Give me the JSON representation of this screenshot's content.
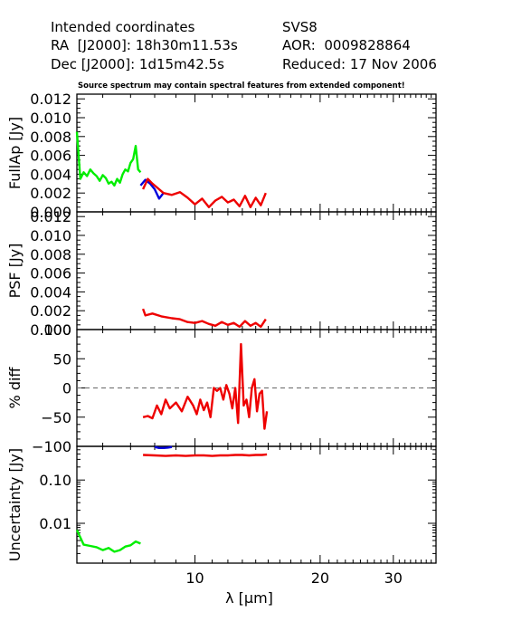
{
  "header": {
    "left_title": "Intended coordinates",
    "ra": "RA  [J2000]: 18h30m11.53s",
    "dec": "Dec [J2000]: 1d15m42.5s",
    "target": "SVS8",
    "aor": "AOR:  0009828864",
    "reduced": "Reduced: 17 Nov 2006",
    "warning": "Source spectrum may contain spectral features from extended component!"
  },
  "colors": {
    "sl_green": "#00ee00",
    "ll_blue": "#0000dd",
    "ll_red": "#ee0000",
    "axis": "#000000"
  },
  "chart_data": [
    {
      "type": "line",
      "ylabel": "FullAp [Jy]",
      "ylim": [
        0,
        0.0125
      ],
      "yticks": [
        "0.000",
        "0.002",
        "0.004",
        "0.006",
        "0.008",
        "0.010",
        "0.012"
      ],
      "series": [
        {
          "color": "green",
          "x": [
            5.2,
            5.3,
            5.4,
            5.5,
            5.6,
            5.7,
            5.8,
            5.9,
            6.0,
            6.1,
            6.2,
            6.3,
            6.4,
            6.5,
            6.6,
            6.7,
            6.8,
            6.9,
            7.0,
            7.1,
            7.2,
            7.3,
            7.4
          ],
          "y": [
            0.0085,
            0.0035,
            0.0042,
            0.0038,
            0.0045,
            0.0041,
            0.0038,
            0.0033,
            0.0039,
            0.0036,
            0.003,
            0.0032,
            0.0028,
            0.0035,
            0.0031,
            0.004,
            0.0045,
            0.0043,
            0.0052,
            0.0056,
            0.007,
            0.0045,
            0.0042
          ]
        },
        {
          "color": "blue",
          "x": [
            7.4,
            7.6,
            7.8,
            8.0,
            8.2,
            8.4
          ],
          "y": [
            0.0028,
            0.0034,
            0.003,
            0.0024,
            0.0014,
            0.002
          ]
        },
        {
          "color": "red",
          "x": [
            7.5,
            7.7,
            7.9,
            8.1,
            8.4,
            8.8,
            9.2,
            9.6,
            10.0,
            10.4,
            10.8,
            11.2,
            11.6,
            12.0,
            12.4,
            12.8,
            13.2,
            13.6,
            14.0,
            14.4,
            14.8
          ],
          "y": [
            0.0024,
            0.0035,
            0.003,
            0.0026,
            0.002,
            0.0018,
            0.0021,
            0.0015,
            0.0008,
            0.0014,
            0.0005,
            0.0012,
            0.0016,
            0.001,
            0.0013,
            0.0006,
            0.0017,
            0.0005,
            0.0015,
            0.0007,
            0.002
          ]
        }
      ]
    },
    {
      "type": "line",
      "ylabel": "PSF [Jy]",
      "ylim": [
        0,
        0.0125
      ],
      "yticks": [
        "0.000",
        "0.002",
        "0.004",
        "0.006",
        "0.008",
        "0.010",
        "0.012"
      ],
      "series": [
        {
          "color": "red",
          "x": [
            7.5,
            7.6,
            7.9,
            8.3,
            8.8,
            9.2,
            9.6,
            10.0,
            10.4,
            10.8,
            11.2,
            11.6,
            12.0,
            12.4,
            12.8,
            13.2,
            13.6,
            14.0,
            14.4,
            14.8
          ],
          "y": [
            0.0022,
            0.0015,
            0.0017,
            0.0014,
            0.0012,
            0.0011,
            0.0008,
            0.0007,
            0.0009,
            0.0006,
            0.0004,
            0.0008,
            0.0005,
            0.0007,
            0.0003,
            0.0009,
            0.0004,
            0.0007,
            0.0003,
            0.0011
          ]
        }
      ]
    },
    {
      "type": "line",
      "ylabel": "% diff",
      "ylim": [
        -100,
        100
      ],
      "yticks": [
        "−100",
        "−50",
        "0",
        "50",
        "100"
      ],
      "zero_line": true,
      "series": [
        {
          "color": "red",
          "x": [
            7.5,
            7.7,
            7.9,
            8.1,
            8.3,
            8.5,
            8.7,
            9.0,
            9.3,
            9.6,
            9.9,
            10.1,
            10.3,
            10.5,
            10.7,
            10.9,
            11.1,
            11.3,
            11.5,
            11.7,
            11.9,
            12.1,
            12.3,
            12.5,
            12.7,
            12.9,
            13.1,
            13.3,
            13.5,
            13.7,
            13.9,
            14.1,
            14.3,
            14.5,
            14.7,
            14.9
          ],
          "y": [
            -50,
            -48,
            -52,
            -30,
            -45,
            -20,
            -35,
            -25,
            -40,
            -15,
            -30,
            -45,
            -20,
            -38,
            -25,
            -50,
            0,
            -5,
            0,
            -20,
            5,
            -10,
            -35,
            0,
            -60,
            75,
            -30,
            -20,
            -50,
            0,
            15,
            -40,
            -10,
            -5,
            -70,
            -40
          ]
        }
      ]
    },
    {
      "type": "line",
      "ylabel": "Uncertainty [Jy]",
      "yscale": "log",
      "ylim": [
        0.0012,
        0.6
      ],
      "yticks": [
        "0.01",
        "0.10"
      ],
      "series": [
        {
          "color": "green",
          "x": [
            5.2,
            5.4,
            5.6,
            5.8,
            6.0,
            6.2,
            6.4,
            6.6,
            6.8,
            7.0,
            7.2,
            7.4
          ],
          "y": [
            0.007,
            0.0032,
            0.003,
            0.0028,
            0.0024,
            0.0027,
            0.0022,
            0.0024,
            0.0029,
            0.0031,
            0.0038,
            0.0034
          ]
        },
        {
          "color": "red",
          "x": [
            7.5,
            8.0,
            8.5,
            9.0,
            9.5,
            10.0,
            10.5,
            11.0,
            11.5,
            12.0,
            12.5,
            13.0,
            13.5,
            14.0,
            14.5,
            14.9
          ],
          "y": [
            0.38,
            0.37,
            0.36,
            0.37,
            0.36,
            0.37,
            0.37,
            0.36,
            0.37,
            0.37,
            0.38,
            0.38,
            0.37,
            0.38,
            0.38,
            0.39
          ]
        },
        {
          "color": "blue",
          "x": [
            8.0,
            8.2,
            8.4,
            8.6,
            8.8
          ],
          "y": [
            0.58,
            0.55,
            0.55,
            0.56,
            0.58
          ]
        }
      ]
    }
  ],
  "x_axis": {
    "label": "λ [μm]",
    "scale": "log",
    "xlim": [
      5.2,
      38.0
    ],
    "ticks": [
      {
        "value": 10,
        "label": "10"
      },
      {
        "value": 20,
        "label": "20"
      },
      {
        "value": 30,
        "label": "30"
      }
    ]
  }
}
